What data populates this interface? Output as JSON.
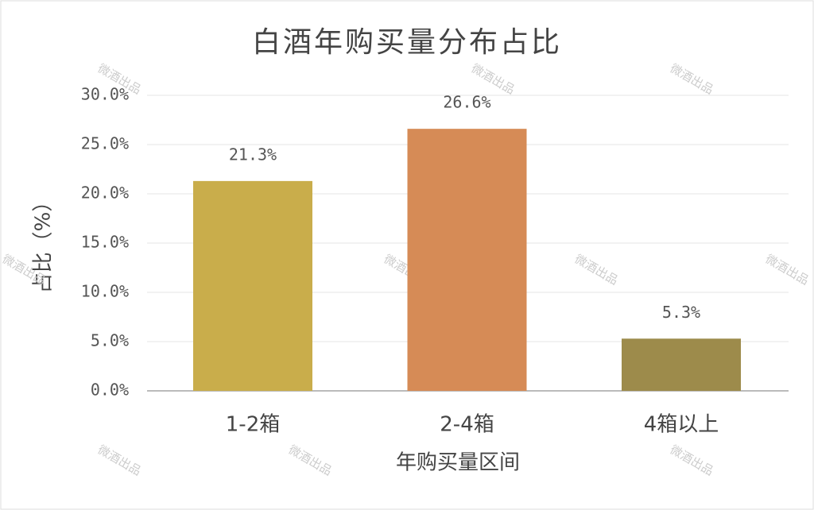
{
  "chart_data": {
    "type": "bar",
    "title": "白酒年购买量分布占比",
    "categories": [
      "1-2箱",
      "2-4箱",
      "4箱以上"
    ],
    "values": [
      21.3,
      26.6,
      5.3
    ],
    "value_labels": [
      "21.3%",
      "26.6%",
      "5.3%"
    ],
    "colors": [
      "#c9ad4b",
      "#d68b56",
      "#9d8b4b"
    ],
    "x_label": "年购买量区间",
    "y_label": "占比（%）",
    "ylim": [
      0,
      30
    ],
    "yticks": [
      {
        "value": 0,
        "label": "0.0%"
      },
      {
        "value": 5,
        "label": "5.0%"
      },
      {
        "value": 10,
        "label": "10.0%"
      },
      {
        "value": 15,
        "label": "15.0%"
      },
      {
        "value": 20,
        "label": "20.0%"
      },
      {
        "value": 25,
        "label": "25.0%"
      },
      {
        "value": 30,
        "label": "30.0%"
      }
    ],
    "grid": true,
    "watermark": "微酒出品"
  }
}
